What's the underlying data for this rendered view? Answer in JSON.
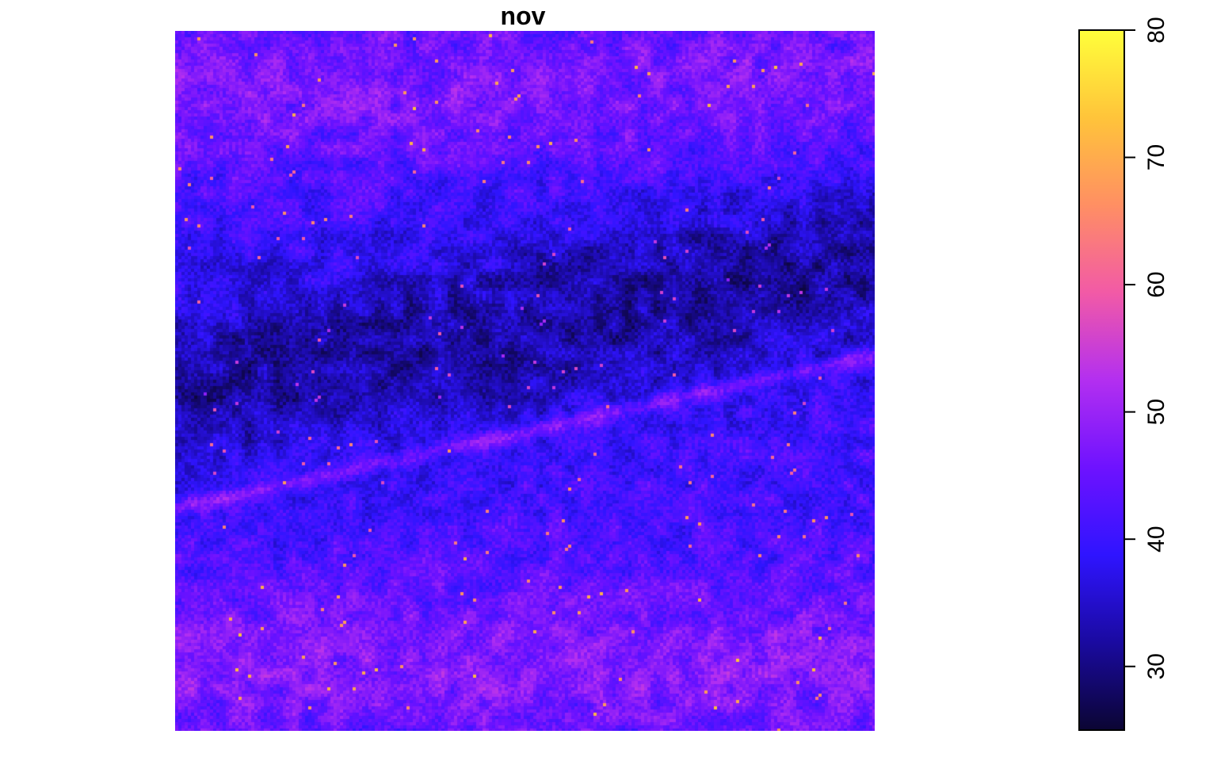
{
  "chart_data": {
    "type": "heatmap",
    "title": "nov",
    "xlabel": "",
    "ylabel": "",
    "legend": {
      "position": "right",
      "range": [
        25,
        80
      ],
      "ticks": [
        "30",
        "40",
        "50",
        "60",
        "70",
        "80"
      ]
    },
    "colors": {
      "palette": [
        "#0b0533",
        "#1a0aa0",
        "#2f14ff",
        "#6e12ff",
        "#b32ff0",
        "#f25aa6",
        "#ff8f63",
        "#ffc43a",
        "#ffff3a"
      ],
      "axis_color": "#000000"
    }
  }
}
